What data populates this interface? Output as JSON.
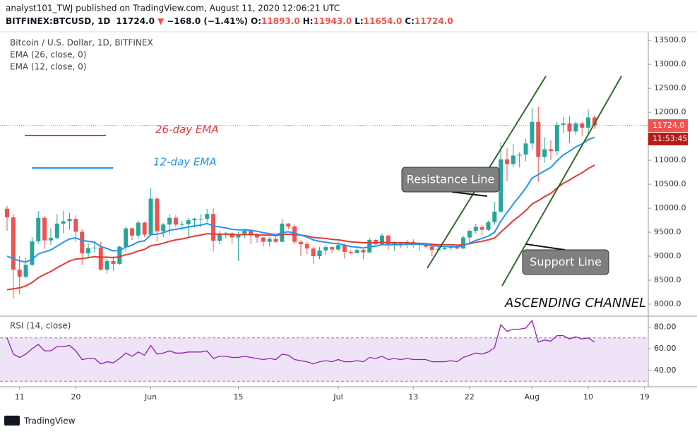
{
  "header": {
    "publisher": "analyst101_TWJ published on TradingView.com, August 11, 2020 12:06:21 UTC",
    "symbol": "BITFINEX:BTCUSD, 1D",
    "last": "11724.0",
    "arrow": "▼",
    "change": "−168.0 (−1.41%)",
    "o_label": "O:",
    "o_value": "11893.0",
    "h_label": "H:",
    "h_value": "11943.0",
    "l_label": "L:",
    "l_value": "11654.0",
    "c_label": "C:",
    "c_value": "11724.0"
  },
  "footer": {
    "brand": "TradingView"
  },
  "chart_data": [
    {
      "type": "candlestick",
      "title": "Bitcoin / U.S. Dollar, 1D, BITFINEX",
      "up_color": "#26a69a",
      "down_color": "#ef5350",
      "categories": [
        null,
        null,
        "11",
        null,
        null,
        null,
        null,
        null,
        null,
        null,
        null,
        "20",
        null,
        null,
        null,
        null,
        null,
        null,
        null,
        null,
        null,
        null,
        null,
        "Jun",
        null,
        null,
        null,
        null,
        null,
        null,
        null,
        null,
        null,
        null,
        null,
        null,
        null,
        "15",
        null,
        null,
        null,
        null,
        null,
        null,
        null,
        null,
        null,
        null,
        null,
        null,
        null,
        null,
        null,
        "Jul",
        null,
        null,
        null,
        null,
        null,
        null,
        null,
        null,
        null,
        null,
        null,
        "13",
        null,
        null,
        null,
        null,
        null,
        null,
        null,
        null,
        "22",
        null,
        null,
        null,
        null,
        null,
        null,
        null,
        null,
        null,
        "Aug",
        null,
        null,
        null,
        null,
        null,
        null,
        null,
        null,
        "10",
        null,
        null,
        null,
        null,
        null,
        null,
        null,
        null,
        "19"
      ],
      "open": [
        9990,
        9810,
        8720,
        8570,
        8820,
        9310,
        9800,
        9330,
        9380,
        9680,
        9730,
        9780,
        9510,
        9060,
        9170,
        9180,
        8720,
        8900,
        8840,
        9200,
        9580,
        9430,
        9700,
        9450,
        10200,
        9520,
        9660,
        9800,
        9660,
        9670,
        9750,
        9780,
        9780,
        9880,
        9320,
        9470,
        9480,
        9390,
        9450,
        9530,
        9460,
        9390,
        9300,
        9360,
        9300,
        9680,
        9620,
        9300,
        9250,
        9160,
        9000,
        9120,
        9190,
        9140,
        9230,
        9090,
        9070,
        9130,
        9080,
        9340,
        9250,
        9430,
        9230,
        9290,
        9240,
        9300,
        9240,
        9250,
        9200,
        9130,
        9150,
        9170,
        9210,
        9160,
        9390,
        9530,
        9610,
        9550,
        9710,
        9930,
        11020,
        10920,
        11100,
        11120,
        11350,
        11800,
        11070,
        11230,
        11190,
        11740,
        11770,
        11600,
        11770,
        11680,
        11893,
        null,
        null,
        null,
        null,
        null,
        null,
        null,
        null
      ],
      "high": [
        10050,
        9880,
        9000,
        8960,
        9400,
        9940,
        9840,
        9580,
        9880,
        9950,
        9900,
        9850,
        9560,
        9270,
        9310,
        9300,
        8980,
        9000,
        9220,
        9620,
        9600,
        9740,
        9720,
        10420,
        10230,
        9690,
        9880,
        9850,
        9740,
        9800,
        9800,
        9880,
        9990,
        10000,
        9530,
        9500,
        9500,
        9500,
        9580,
        9560,
        9480,
        9400,
        9400,
        9420,
        9780,
        9690,
        9660,
        9330,
        9300,
        9190,
        9190,
        9230,
        9200,
        9300,
        9260,
        9130,
        9190,
        9150,
        9380,
        9360,
        9480,
        9450,
        9310,
        9300,
        9340,
        9350,
        9280,
        9270,
        9210,
        9190,
        9200,
        9240,
        9220,
        9430,
        9550,
        9670,
        9650,
        9740,
        10130,
        11380,
        11250,
        11340,
        11170,
        11450,
        12090,
        12120,
        11480,
        11420,
        11800,
        11900,
        11920,
        11800,
        11800,
        12060,
        11943,
        null,
        null,
        null,
        null,
        null,
        null,
        null,
        null
      ],
      "low": [
        9530,
        8120,
        8200,
        8540,
        8800,
        9260,
        9150,
        9240,
        9350,
        9480,
        9550,
        9300,
        8820,
        8950,
        9080,
        8700,
        8640,
        8700,
        8820,
        9100,
        9340,
        9360,
        9400,
        9420,
        9300,
        9400,
        9450,
        9600,
        9550,
        9400,
        9600,
        9600,
        9700,
        9100,
        9250,
        9380,
        9250,
        8900,
        9380,
        9250,
        9280,
        9200,
        9200,
        9280,
        9290,
        9560,
        9250,
        9000,
        9040,
        8840,
        8940,
        9020,
        9070,
        9100,
        8950,
        9040,
        9050,
        8940,
        9060,
        9210,
        9240,
        9130,
        9120,
        9180,
        9160,
        9180,
        9120,
        9170,
        9000,
        9100,
        9130,
        9120,
        9140,
        9150,
        9280,
        9470,
        9440,
        9530,
        9660,
        9900,
        10560,
        10860,
        10850,
        10980,
        11220,
        10550,
        10950,
        11000,
        11100,
        11560,
        11360,
        11530,
        11500,
        11530,
        11654,
        null,
        null,
        null,
        null,
        null,
        null,
        null,
        null
      ],
      "close": [
        9810,
        8720,
        8570,
        8820,
        9310,
        9800,
        9330,
        9380,
        9680,
        9730,
        9780,
        9510,
        9060,
        9170,
        9180,
        8720,
        8900,
        8840,
        9200,
        9580,
        9430,
        9700,
        9450,
        10200,
        9520,
        9660,
        9800,
        9660,
        9670,
        9750,
        9780,
        9780,
        9880,
        9320,
        9470,
        9480,
        9390,
        9450,
        9530,
        9460,
        9390,
        9300,
        9360,
        9300,
        9680,
        9620,
        9300,
        9250,
        9160,
        9000,
        9120,
        9190,
        9140,
        9230,
        9090,
        9070,
        9130,
        9080,
        9340,
        9250,
        9430,
        9230,
        9290,
        9240,
        9300,
        9240,
        9250,
        9200,
        9130,
        9150,
        9170,
        9210,
        9160,
        9390,
        9530,
        9610,
        9550,
        9710,
        9930,
        11020,
        10920,
        11100,
        11120,
        11350,
        11800,
        11070,
        11230,
        11190,
        11740,
        11770,
        11600,
        11770,
        11680,
        11893,
        11724,
        null,
        null,
        null,
        null,
        null,
        null,
        null,
        null
      ],
      "series": [
        {
          "name": "EMA (26, close, 0)",
          "color": "#e53935",
          "values": [
            8300,
            8320,
            8340,
            8380,
            8450,
            8550,
            8620,
            8680,
            8760,
            8830,
            8900,
            8940,
            8950,
            8970,
            8990,
            8980,
            8980,
            8970,
            8990,
            9030,
            9060,
            9110,
            9140,
            9220,
            9240,
            9270,
            9310,
            9340,
            9360,
            9390,
            9420,
            9440,
            9470,
            9460,
            9460,
            9460,
            9450,
            9450,
            9450,
            9450,
            9450,
            9440,
            9440,
            9430,
            9450,
            9460,
            9450,
            9440,
            9420,
            9390,
            9380,
            9370,
            9350,
            9340,
            9320,
            9300,
            9290,
            9280,
            9280,
            9280,
            9290,
            9280,
            9280,
            9280,
            9280,
            9270,
            9270,
            9260,
            9250,
            9240,
            9240,
            9240,
            9230,
            9240,
            9260,
            9290,
            9310,
            9340,
            9380,
            9500,
            9620,
            9740,
            9840,
            9950,
            10090,
            10160,
            10240,
            10310,
            10420,
            10520,
            10590,
            10670,
            10740,
            10830,
            10900,
            null,
            null,
            null,
            null,
            null,
            null,
            null,
            null
          ]
        },
        {
          "name": "EMA (12, close, 0)",
          "color": "#2196f3",
          "values": [
            9000,
            8950,
            8900,
            8880,
            8930,
            9050,
            9090,
            9130,
            9210,
            9290,
            9360,
            9380,
            9330,
            9310,
            9290,
            9200,
            9160,
            9110,
            9120,
            9190,
            9230,
            9300,
            9320,
            9450,
            9460,
            9490,
            9540,
            9560,
            9580,
            9610,
            9630,
            9650,
            9680,
            9630,
            9610,
            9590,
            9560,
            9550,
            9550,
            9540,
            9520,
            9490,
            9470,
            9450,
            9490,
            9510,
            9480,
            9440,
            9400,
            9340,
            9310,
            9290,
            9270,
            9260,
            9230,
            9200,
            9190,
            9170,
            9200,
            9210,
            9240,
            9240,
            9240,
            9240,
            9250,
            9250,
            9250,
            9240,
            9220,
            9210,
            9200,
            9200,
            9190,
            9220,
            9270,
            9330,
            9370,
            9420,
            9500,
            9730,
            9910,
            10090,
            10250,
            10420,
            10630,
            10700,
            10780,
            10850,
            10990,
            11110,
            11190,
            11280,
            11340,
            11430,
            11480,
            null,
            null,
            null,
            null,
            null,
            null,
            null,
            null
          ]
        }
      ],
      "annotations": [
        "26-day EMA",
        "12-day EMA",
        "Resistance Line",
        "Support Line",
        "ASCENDING CHANNEL"
      ],
      "price_tag": {
        "value": 11724,
        "label": "11724.0"
      },
      "countdown": "11:53:45",
      "ylim": [
        7750,
        13680
      ],
      "yticks": [
        {
          "value": 8000,
          "label": "8000.0"
        },
        {
          "value": 8500,
          "label": "8500.0"
        },
        {
          "value": 9000,
          "label": "9000.0"
        },
        {
          "value": 9500,
          "label": "9500.0"
        },
        {
          "value": 10000,
          "label": "10000.0"
        },
        {
          "value": 10500,
          "label": "10500.0"
        },
        {
          "value": 11000,
          "label": "11000.0"
        },
        {
          "value": 11500,
          "label": "11500.0"
        },
        {
          "value": 12000,
          "label": "12000.0"
        },
        {
          "value": 12500,
          "label": "12500.0"
        },
        {
          "value": 13000,
          "label": "13000.0"
        },
        {
          "value": 13500,
          "label": "13500.0"
        }
      ]
    },
    {
      "type": "line",
      "title": "RSI (14, close)",
      "color": "#8e24aa",
      "band_color": "#efe3f8",
      "bands": [
        30,
        70
      ],
      "values": [
        70,
        55,
        52,
        55,
        60,
        64,
        58,
        58,
        62,
        62,
        63,
        58,
        50,
        51,
        51,
        46,
        48,
        47,
        51,
        56,
        53,
        57,
        54,
        63,
        55,
        56,
        58,
        56,
        56,
        57,
        57,
        57,
        58,
        51,
        53,
        53,
        52,
        52,
        53,
        52,
        51,
        50,
        51,
        50,
        55,
        54,
        50,
        49,
        48,
        46,
        48,
        49,
        48,
        50,
        48,
        48,
        49,
        48,
        52,
        51,
        53,
        50,
        51,
        50,
        51,
        50,
        50,
        50,
        48,
        48,
        48,
        49,
        48,
        52,
        54,
        56,
        55,
        57,
        61,
        82,
        76,
        78,
        78,
        79,
        86,
        66,
        68,
        67,
        72,
        72,
        69,
        71,
        69,
        70,
        66,
        null,
        null,
        null,
        null,
        null,
        null,
        null,
        null
      ],
      "ylim": [
        25,
        90
      ],
      "yticks": [
        {
          "value": 40,
          "label": "40.00"
        },
        {
          "value": 60,
          "label": "60.00"
        },
        {
          "value": 80,
          "label": "80.00"
        }
      ]
    }
  ]
}
